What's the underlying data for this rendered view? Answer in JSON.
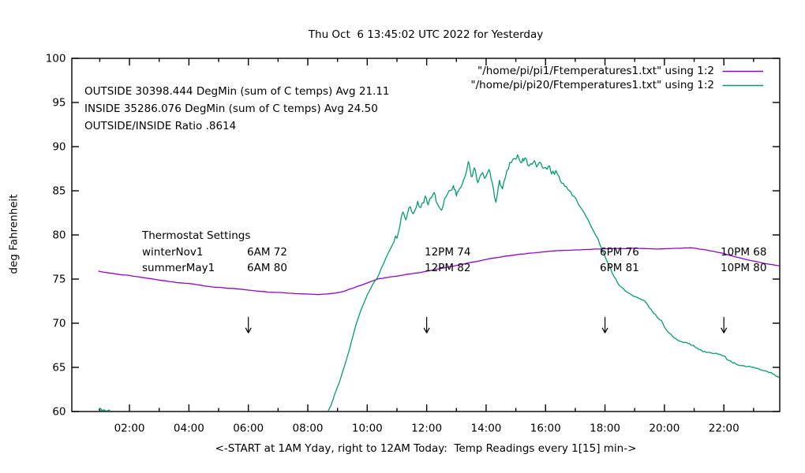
{
  "title": "Thu Oct  6 13:45:02 UTC 2022 for Yesterday",
  "legend": {
    "entries": [
      {
        "label": "\"/home/pi/pi1/Ftemperatures1.txt\" using 1:2",
        "color": "#9400d3"
      },
      {
        "label": "\"/home/pi/pi20/Ftemperatures1.txt\" using 1:2",
        "color": "#009e73"
      }
    ]
  },
  "stats": {
    "outside": "OUTSIDE 30398.444 DegMin (sum of C temps) Avg 21.11",
    "inside": "INSIDE 35286.076 DegMin (sum of C temps) Avg 24.50",
    "ratio": "OUTSIDE/INSIDE Ratio .8614"
  },
  "thermostat": {
    "title": "Thermostat Settings",
    "rows": [
      {
        "name": "winterNov1",
        "settings": [
          "6AM 72",
          "12PM 74",
          "6PM 76",
          "10PM 68"
        ]
      },
      {
        "name": "summerMay1",
        "settings": [
          "6AM 80",
          "12PM 82",
          "6PM 81",
          "10PM 80"
        ]
      }
    ]
  },
  "axes": {
    "ylabel": "deg Fahrenheit",
    "xlabel": "<-START at 1AM Yday, right to 12AM Today:  Temp Readings every 1[15] min->",
    "yticks": [
      60,
      65,
      70,
      75,
      80,
      85,
      90,
      95,
      100
    ],
    "xticks": [
      {
        "h": 2,
        "label": "02:00"
      },
      {
        "h": 4,
        "label": "04:00"
      },
      {
        "h": 6,
        "label": "06:00"
      },
      {
        "h": 8,
        "label": "08:00"
      },
      {
        "h": 10,
        "label": "10:00"
      },
      {
        "h": 12,
        "label": "12:00"
      },
      {
        "h": 14,
        "label": "14:00"
      },
      {
        "h": 16,
        "label": "16:00"
      },
      {
        "h": 18,
        "label": "18:00"
      },
      {
        "h": 20,
        "label": "20:00"
      },
      {
        "h": 22,
        "label": "22:00"
      }
    ]
  },
  "chart_data": {
    "type": "line",
    "x_unit": "hours (00:00 yesterday to 24:00)",
    "xlim_hours": [
      0.06,
      23.88
    ],
    "ylim": [
      60,
      100
    ],
    "grid": false,
    "legend_position": "top-right",
    "arrows": {
      "hours": [
        6,
        12,
        18,
        22
      ],
      "from_f": 70.7,
      "to_f": 68.9
    },
    "series": [
      {
        "name": "\"/home/pi/pi1/Ftemperatures1.txt\" using 1:2",
        "role": "inside temperature (deg F)",
        "color": "#9400d3",
        "points": [
          [
            0.95,
            75.9
          ],
          [
            1.3,
            75.7
          ],
          [
            1.7,
            75.5
          ],
          [
            2,
            75.4
          ],
          [
            2.4,
            75.2
          ],
          [
            2.8,
            75
          ],
          [
            3.2,
            74.8
          ],
          [
            3.6,
            74.6
          ],
          [
            4,
            74.5
          ],
          [
            4.4,
            74.3
          ],
          [
            4.8,
            74.1
          ],
          [
            5.2,
            74
          ],
          [
            5.6,
            73.9
          ],
          [
            6,
            73.75
          ],
          [
            6.4,
            73.6
          ],
          [
            6.8,
            73.5
          ],
          [
            7.2,
            73.45
          ],
          [
            7.6,
            73.35
          ],
          [
            8,
            73.3
          ],
          [
            8.3,
            73.25
          ],
          [
            8.6,
            73.3
          ],
          [
            8.9,
            73.4
          ],
          [
            9.2,
            73.6
          ],
          [
            9.5,
            73.95
          ],
          [
            9.8,
            74.3
          ],
          [
            10.1,
            74.7
          ],
          [
            10.35,
            75
          ],
          [
            10.6,
            75.15
          ],
          [
            10.9,
            75.3
          ],
          [
            11.2,
            75.45
          ],
          [
            11.5,
            75.6
          ],
          [
            11.8,
            75.75
          ],
          [
            12.1,
            75.95
          ],
          [
            12.4,
            76.15
          ],
          [
            12.7,
            76.35
          ],
          [
            13,
            76.55
          ],
          [
            13.3,
            76.75
          ],
          [
            13.6,
            76.95
          ],
          [
            13.9,
            77.15
          ],
          [
            14.2,
            77.35
          ],
          [
            14.5,
            77.5
          ],
          [
            14.8,
            77.65
          ],
          [
            15.1,
            77.8
          ],
          [
            15.4,
            77.9
          ],
          [
            15.7,
            78
          ],
          [
            16,
            78.1
          ],
          [
            16.3,
            78.2
          ],
          [
            16.6,
            78.25
          ],
          [
            17,
            78.3
          ],
          [
            17.4,
            78.35
          ],
          [
            17.8,
            78.4
          ],
          [
            18.2,
            78.45
          ],
          [
            18.6,
            78.45
          ],
          [
            19,
            78.5
          ],
          [
            19.4,
            78.45
          ],
          [
            19.8,
            78.4
          ],
          [
            20.2,
            78.45
          ],
          [
            20.6,
            78.5
          ],
          [
            20.9,
            78.55
          ],
          [
            21.1,
            78.45
          ],
          [
            21.4,
            78.3
          ],
          [
            21.7,
            78.1
          ],
          [
            22,
            77.9
          ],
          [
            22.3,
            77.6
          ],
          [
            22.6,
            77.35
          ],
          [
            22.9,
            77.1
          ],
          [
            23.2,
            76.9
          ],
          [
            23.5,
            76.7
          ],
          [
            23.88,
            76.5
          ]
        ]
      },
      {
        "name": "\"/home/pi/pi20/Ftemperatures1.txt\" using 1:2",
        "role": "outside temperature (deg F), clipped below 60",
        "color": "#009e73",
        "points": [
          [
            0.95,
            60.25
          ],
          [
            1.02,
            60.35
          ],
          [
            1.08,
            60.1
          ],
          [
            1.15,
            60.2
          ],
          [
            1.22,
            60.05
          ],
          [
            1.3,
            60.15
          ],
          [
            1.38,
            59.95
          ],
          [
            1.45,
            59.6
          ],
          null,
          [
            8.66,
            59.9
          ],
          [
            8.78,
            60.7
          ],
          [
            8.9,
            61.9
          ],
          [
            9.05,
            63.2
          ],
          [
            9.2,
            64.8
          ],
          [
            9.4,
            67
          ],
          [
            9.6,
            69.6
          ],
          [
            9.8,
            71.6
          ],
          [
            10,
            73.2
          ],
          [
            10.2,
            74.5
          ],
          [
            10.35,
            75.2
          ],
          [
            10.5,
            76.4
          ],
          [
            10.7,
            77.9
          ],
          [
            10.9,
            79.2
          ],
          [
            11.05,
            80.3
          ],
          [
            11.2,
            82.6
          ],
          [
            11.3,
            81.7
          ],
          [
            11.45,
            83.2
          ],
          [
            11.55,
            82.4
          ],
          [
            11.7,
            83.8
          ],
          [
            11.8,
            83.1
          ],
          [
            11.95,
            84.4
          ],
          [
            12.05,
            83.4
          ],
          [
            12.15,
            84.2
          ],
          [
            12.25,
            84.8
          ],
          [
            12.35,
            83.6
          ],
          [
            12.5,
            82.8
          ],
          [
            12.6,
            84.1
          ],
          [
            12.75,
            85
          ],
          [
            12.9,
            85.6
          ],
          [
            13,
            84.4
          ],
          [
            13.1,
            85.2
          ],
          [
            13.25,
            86.3
          ],
          [
            13.4,
            88.3
          ],
          [
            13.5,
            86.6
          ],
          [
            13.6,
            87.6
          ],
          [
            13.72,
            85.9
          ],
          [
            13.85,
            86.9
          ],
          [
            13.95,
            86.4
          ],
          [
            14.1,
            87.4
          ],
          [
            14.2,
            86
          ],
          [
            14.33,
            83.7
          ],
          [
            14.45,
            86.2
          ],
          [
            14.55,
            85.2
          ],
          [
            14.7,
            87.3
          ],
          [
            14.85,
            88.2
          ],
          [
            15,
            88.6
          ],
          [
            15.08,
            88.9
          ],
          [
            15.2,
            88.2
          ],
          [
            15.3,
            88.7
          ],
          [
            15.45,
            87.8
          ],
          [
            15.6,
            88.3
          ],
          [
            15.7,
            87.7
          ],
          [
            15.85,
            88.1
          ],
          [
            15.95,
            87.6
          ],
          [
            16.1,
            87.8
          ],
          [
            16.2,
            86.9
          ],
          [
            16.35,
            87.3
          ],
          [
            16.5,
            86.1
          ],
          [
            16.65,
            85.5
          ],
          [
            16.8,
            85
          ],
          [
            16.95,
            84.4
          ],
          [
            17.1,
            83.5
          ],
          [
            17.3,
            82.5
          ],
          [
            17.5,
            81.2
          ],
          [
            17.7,
            79.9
          ],
          [
            17.9,
            78.4
          ],
          [
            18.1,
            76.8
          ],
          [
            18.3,
            75.3
          ],
          [
            18.5,
            74.2
          ],
          [
            18.7,
            73.6
          ],
          [
            18.9,
            73.2
          ],
          [
            19.1,
            72.9
          ],
          [
            19.3,
            72.6
          ],
          [
            19.45,
            72
          ],
          [
            19.6,
            71.3
          ],
          [
            19.75,
            70.7
          ],
          [
            19.9,
            70.3
          ],
          [
            20.05,
            69.3
          ],
          [
            20.2,
            68.8
          ],
          [
            20.35,
            68.3
          ],
          [
            20.5,
            68
          ],
          [
            20.65,
            67.8
          ],
          [
            20.8,
            67.7
          ],
          [
            20.95,
            67.5
          ],
          [
            21.1,
            67.2
          ],
          [
            21.25,
            66.9
          ],
          [
            21.4,
            66.7
          ],
          [
            21.6,
            66.6
          ],
          [
            21.8,
            66.5
          ],
          [
            22,
            66.3
          ],
          [
            22.15,
            65.8
          ],
          [
            22.3,
            65.5
          ],
          [
            22.45,
            65.3
          ],
          [
            22.6,
            65.2
          ],
          [
            22.8,
            65.1
          ],
          [
            22.95,
            65
          ],
          [
            23.1,
            64.9
          ],
          [
            23.25,
            64.7
          ],
          [
            23.4,
            64.6
          ],
          [
            23.55,
            64.4
          ],
          [
            23.7,
            64.2
          ],
          [
            23.8,
            64
          ],
          [
            23.88,
            63.9
          ]
        ]
      }
    ]
  }
}
